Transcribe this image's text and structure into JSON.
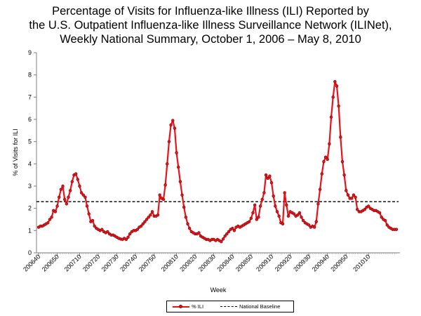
{
  "chart_data": {
    "type": "line",
    "title_lines": [
      "Percentage of Visits for Influenza-like Illness (ILI) Reported by",
      "the U.S. Outpatient Influenza-like Illness Surveillance Network (ILINet),",
      "Weekly National Summary, October 1, 2006 – May 8, 2010"
    ],
    "xlabel": "Week",
    "ylabel": "% of Visits for ILI",
    "ylim": [
      0,
      9
    ],
    "yticks": [
      0,
      1,
      2,
      3,
      4,
      5,
      6,
      7,
      8,
      9
    ],
    "x_tick_labels": [
      "200640",
      "200650",
      "200710",
      "200720",
      "200730",
      "200740",
      "200750",
      "200810",
      "200820",
      "200830",
      "200840",
      "200850",
      "200910",
      "200920",
      "200930",
      "200940",
      "200950",
      "201010"
    ],
    "x_tick_index": [
      0,
      10,
      22,
      32,
      42,
      52,
      62,
      74,
      84,
      94,
      104,
      114,
      125,
      135,
      145,
      155,
      165,
      177
    ],
    "colors": {
      "ili": "#e8131b",
      "ili_marker_edge": "#7a0000",
      "baseline": "#000000"
    },
    "series": [
      {
        "name": "% ILI",
        "values": [
          1.15,
          1.2,
          1.2,
          1.25,
          1.3,
          1.35,
          1.5,
          1.6,
          1.9,
          1.85,
          2.1,
          2.5,
          2.85,
          3.0,
          2.4,
          2.2,
          2.5,
          2.8,
          3.2,
          3.5,
          3.55,
          3.3,
          3.0,
          2.7,
          2.6,
          2.5,
          2.1,
          1.75,
          1.4,
          1.45,
          1.2,
          1.1,
          1.05,
          1.0,
          1.05,
          0.95,
          0.9,
          0.95,
          0.85,
          0.8,
          0.8,
          0.75,
          0.7,
          0.65,
          0.62,
          0.6,
          0.65,
          0.6,
          0.7,
          0.85,
          0.95,
          1.0,
          1.0,
          1.05,
          1.15,
          1.2,
          1.3,
          1.4,
          1.5,
          1.6,
          1.7,
          1.85,
          1.65,
          1.65,
          1.7,
          2.6,
          2.45,
          2.4,
          3.05,
          4.0,
          5.0,
          5.75,
          5.95,
          5.6,
          4.5,
          3.85,
          3.2,
          2.6,
          2.05,
          1.6,
          1.3,
          1.1,
          0.95,
          0.9,
          0.85,
          0.85,
          0.9,
          0.75,
          0.7,
          0.65,
          0.6,
          0.6,
          0.55,
          0.6,
          0.6,
          0.55,
          0.6,
          0.55,
          0.5,
          0.62,
          0.75,
          0.85,
          0.95,
          1.05,
          1.1,
          1.0,
          1.15,
          1.2,
          1.15,
          1.2,
          1.25,
          1.3,
          1.35,
          1.4,
          1.55,
          1.8,
          2.15,
          1.5,
          1.6,
          2.1,
          2.4,
          2.7,
          3.5,
          3.35,
          3.45,
          3.15,
          2.55,
          2.1,
          1.85,
          1.65,
          1.35,
          1.3,
          2.7,
          2.15,
          1.65,
          1.85,
          1.8,
          1.75,
          1.65,
          1.7,
          1.8,
          1.6,
          1.45,
          1.35,
          1.3,
          1.25,
          1.15,
          1.2,
          1.15,
          1.4,
          2.2,
          2.85,
          3.55,
          4.1,
          4.3,
          4.2,
          4.9,
          6.1,
          7.0,
          7.7,
          7.5,
          6.6,
          5.2,
          4.1,
          3.5,
          2.8,
          2.6,
          2.45,
          2.45,
          2.6,
          2.5,
          1.95,
          1.85,
          1.85,
          1.9,
          1.95,
          2.05,
          2.1,
          2.0,
          1.95,
          1.9,
          1.9,
          1.85,
          1.8,
          1.6,
          1.5,
          1.45,
          1.25,
          1.15,
          1.1,
          1.05,
          1.05,
          1.05
        ]
      },
      {
        "name": "National Baseline",
        "values": [
          2.3,
          2.3
        ]
      }
    ]
  }
}
